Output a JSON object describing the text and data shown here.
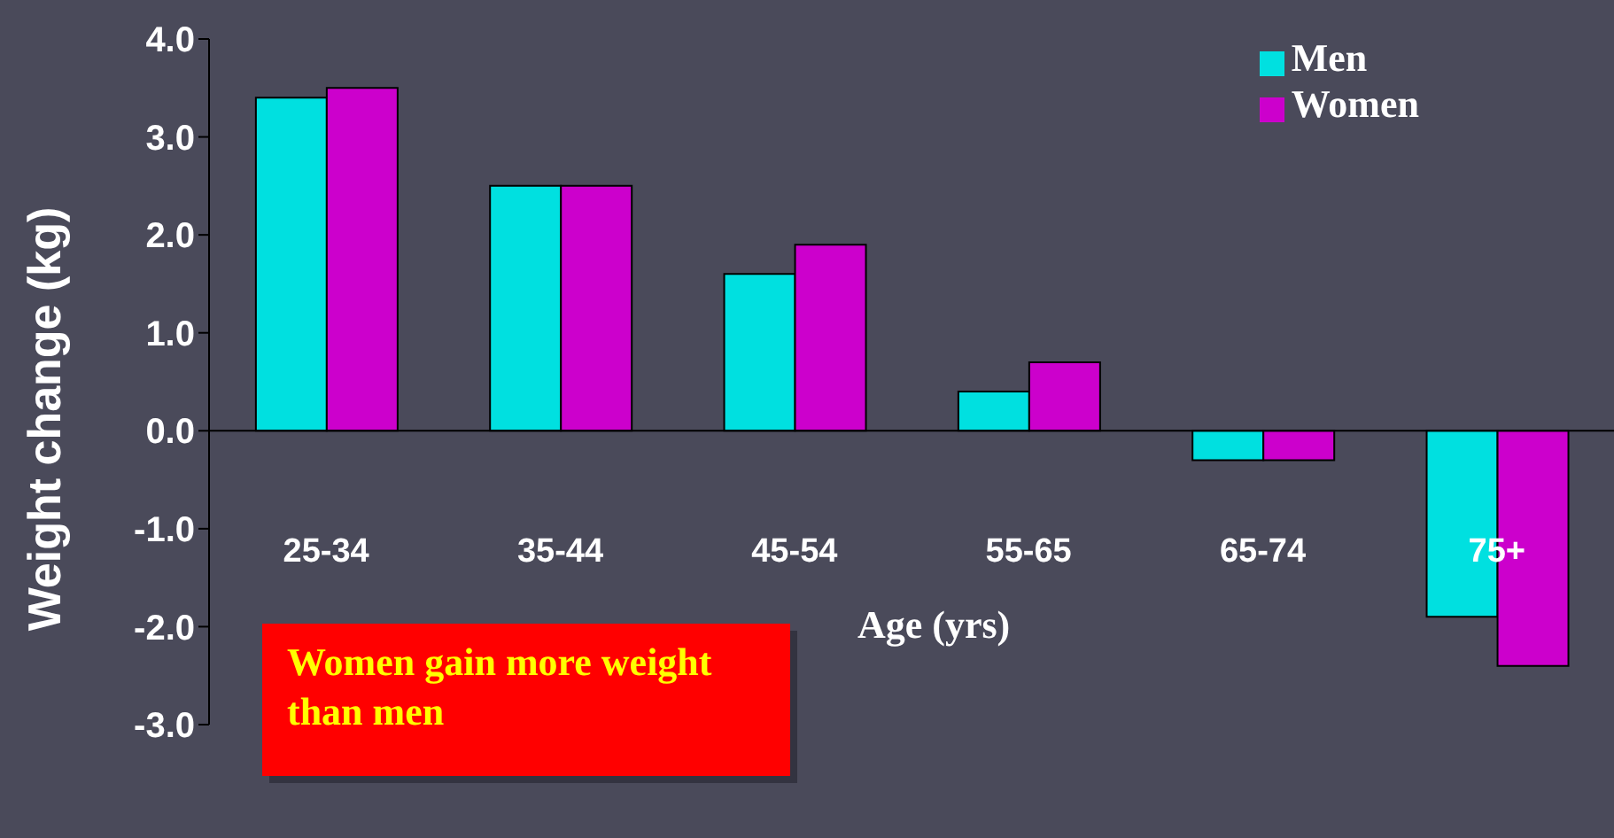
{
  "chart_data": {
    "type": "bar",
    "xlabel": "Age (yrs)",
    "ylabel": "Weight change (kg)",
    "categories": [
      "25-34",
      "35-44",
      "45-54",
      "55-65",
      "65-74",
      "75+"
    ],
    "series": [
      {
        "name": "Men",
        "color": "#00e0e0",
        "values": [
          3.4,
          2.5,
          1.6,
          0.4,
          -0.3,
          -1.9
        ]
      },
      {
        "name": "Women",
        "color": "#cc00cc",
        "values": [
          3.5,
          2.5,
          1.9,
          0.7,
          -0.3,
          -2.4
        ]
      }
    ],
    "ylim": [
      -3,
      4
    ],
    "yticks": [
      {
        "value": 4,
        "label": "4.0"
      },
      {
        "value": 3,
        "label": "3.0"
      },
      {
        "value": 2,
        "label": "2.0"
      },
      {
        "value": 1,
        "label": "1.0"
      },
      {
        "value": 0,
        "label": "0.0"
      },
      {
        "value": -1,
        "label": "-1.0"
      },
      {
        "value": -2,
        "label": "-2.0"
      },
      {
        "value": -3,
        "label": "-3.0"
      }
    ],
    "legend": "top right",
    "annotations": [
      "Women gain more weight than men"
    ]
  }
}
